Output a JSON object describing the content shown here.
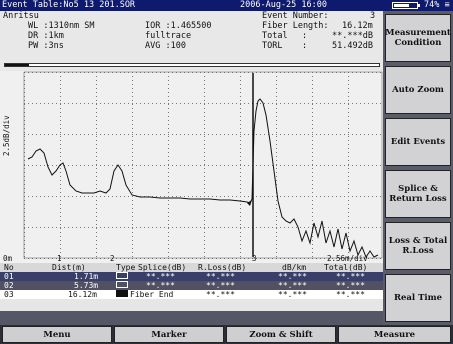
{
  "titlebar": {
    "file": "Event Table:No5 13 201.SOR",
    "datetime": "2006-Aug-25 16:00",
    "battery_level": 0.7,
    "battery_text": "74% ≡"
  },
  "info": {
    "vendor": "Anritsu",
    "wl": "WL :1310nm SM",
    "dr": "DR :1km",
    "pw": "PW :3ns",
    "ior": "IOR :1.465500",
    "mode": "fulltrace",
    "avg": "AVG :100",
    "event_number_label": "Event Number:",
    "event_number": "3",
    "fiber_length_label": "Fiber Length:",
    "fiber_length": "16.12m",
    "total_label": "Total",
    "total_colon": ":",
    "total_value": "**.***dB",
    "torl_label": "TORL",
    "torl_colon": ":",
    "torl_value": "51.492dB"
  },
  "graph": {
    "ylabel": "2.5dB/div",
    "x_start": "0m",
    "xscale": "2.56m/div",
    "markers": [
      "1",
      "2",
      "3"
    ]
  },
  "table": {
    "headers": [
      "No",
      "Dist(m)",
      "Type",
      "Splice(dB)",
      "R.Loss(dB)",
      "dB/km",
      "Total(dB)"
    ],
    "rows": [
      {
        "no": "01",
        "dist": "1.71m",
        "type_text": "",
        "splice": "**.***",
        "rloss": "**.***",
        "dbkm": "**.***",
        "total": "**.***"
      },
      {
        "no": "02",
        "dist": "5.73m",
        "type_text": "",
        "splice": "**.***",
        "rloss": "**.***",
        "dbkm": "**.***",
        "total": "**.***"
      },
      {
        "no": "03",
        "dist": "16.12m",
        "type_text": "Fiber End",
        "splice": "",
        "rloss": "**.***",
        "dbkm": "**.***",
        "total": "**.***"
      }
    ]
  },
  "side_buttons": [
    "Measurement Condition",
    "Auto Zoom",
    "Edit Events",
    "Splice & Return Loss",
    "Loss & Total R.Loss",
    "Real Time"
  ],
  "bottom_buttons": [
    "Menu",
    "Marker",
    "Zoom & Shift",
    "Measure"
  ]
}
